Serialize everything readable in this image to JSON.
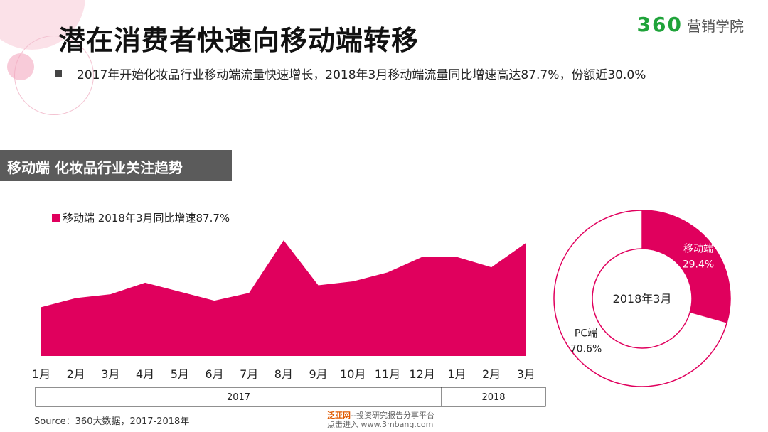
{
  "title": "潜在消费者快速向移动端转移",
  "logo": {
    "number": "360",
    "text": "营销学院"
  },
  "bullet": "2017年开始化妆品行业移动端流量快速增长，2018年3月移动端流量同比增速高达87.7%，份额近30.0%",
  "section_title": "移动端 化妆品行业关注趋势",
  "source": "Source：360大数据，2017-2018年",
  "watermark": {
    "brand": "泛亚网",
    "tagline": "--投资研究报告分享平台",
    "line2": "点击进入 www.3mbang.com"
  },
  "colors": {
    "accent": "#e0005d",
    "section_bar": "#5b5b5b",
    "logo_green": "#1fa33a"
  },
  "chart_data": [
    {
      "type": "area",
      "legend": "移动端 2018年3月同比增速87.7%",
      "categories": [
        "1月",
        "2月",
        "3月",
        "4月",
        "5月",
        "6月",
        "7月",
        "8月",
        "9月",
        "10月",
        "11月",
        "12月",
        "1月",
        "2月",
        "3月"
      ],
      "values": [
        38,
        45,
        48,
        57,
        50,
        43,
        49,
        90,
        55,
        58,
        65,
        77,
        77,
        69,
        88
      ],
      "ylim": [
        0,
        100
      ],
      "year_groups": [
        {
          "label": "2017",
          "from": 0,
          "to": 11
        },
        {
          "label": "2018",
          "from": 12,
          "to": 14
        }
      ]
    },
    {
      "type": "pie",
      "center_label": "2018年3月",
      "slices": [
        {
          "label": "移动端",
          "value": 29.4,
          "value_label": "29.4%",
          "color": "#e0005d"
        },
        {
          "label": "PC端",
          "value": 70.6,
          "value_label": "70.6%",
          "color": "#ffffff"
        }
      ]
    }
  ]
}
